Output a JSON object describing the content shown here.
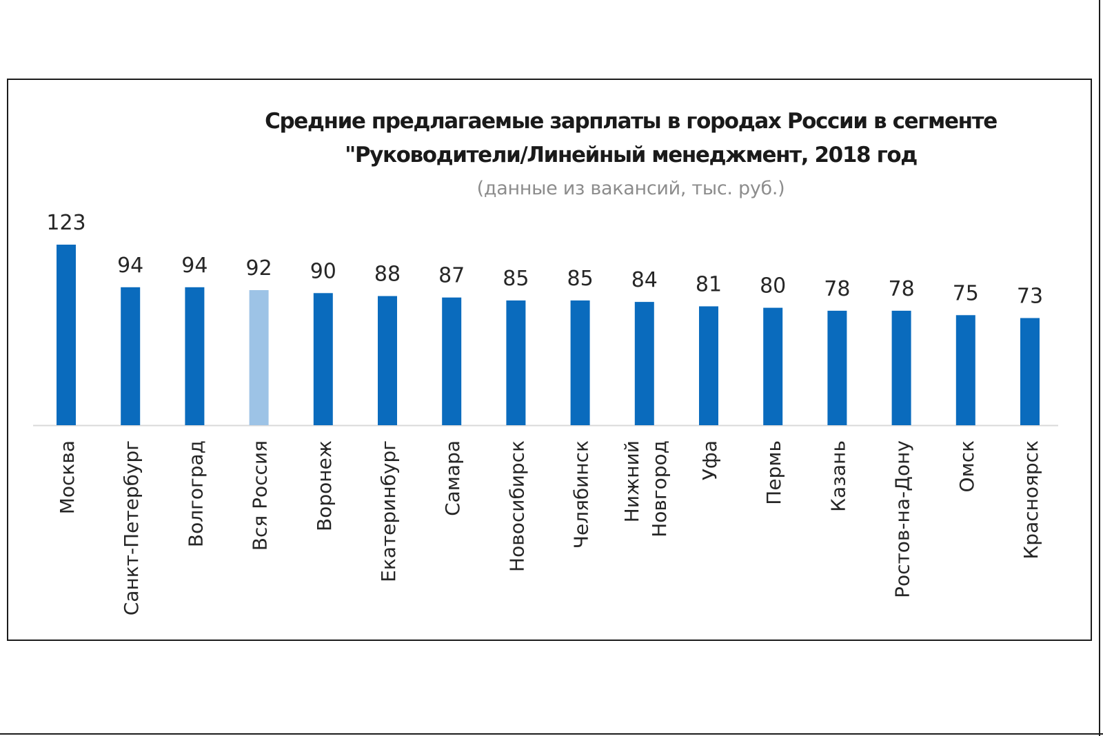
{
  "chart_data": {
    "type": "bar",
    "title_lines": [
      "Средние предлагаемые зарплаты в городах России в сегменте",
      "\"Руководители/Линейный менеджмент, 2018 год"
    ],
    "subtitle": "(данные из вакансий, тыс. руб.)",
    "categories": [
      [
        "Москва"
      ],
      [
        "Санкт-Петербург"
      ],
      [
        "Волгоград"
      ],
      [
        "Вся Россия"
      ],
      [
        "Воронеж"
      ],
      [
        "Екатеринбург"
      ],
      [
        "Самара"
      ],
      [
        "Новосибирск"
      ],
      [
        "Челябинск"
      ],
      [
        "Нижний",
        "Новгород"
      ],
      [
        "Уфа"
      ],
      [
        "Пермь"
      ],
      [
        "Казань"
      ],
      [
        "Ростов-на-Дону"
      ],
      [
        "Омск"
      ],
      [
        "Красноярск"
      ]
    ],
    "values": [
      123,
      94,
      94,
      92,
      90,
      88,
      87,
      85,
      85,
      84,
      81,
      80,
      78,
      78,
      75,
      73
    ],
    "highlight_index": 3,
    "colors": {
      "bar": "#0a6bbd",
      "highlight": "#9dc3e6",
      "axis": "#d9d9d9",
      "label": "#262626"
    },
    "xlabel": "",
    "ylabel": "",
    "ylim": [
      0,
      123
    ],
    "grid": false,
    "legend": "none"
  }
}
